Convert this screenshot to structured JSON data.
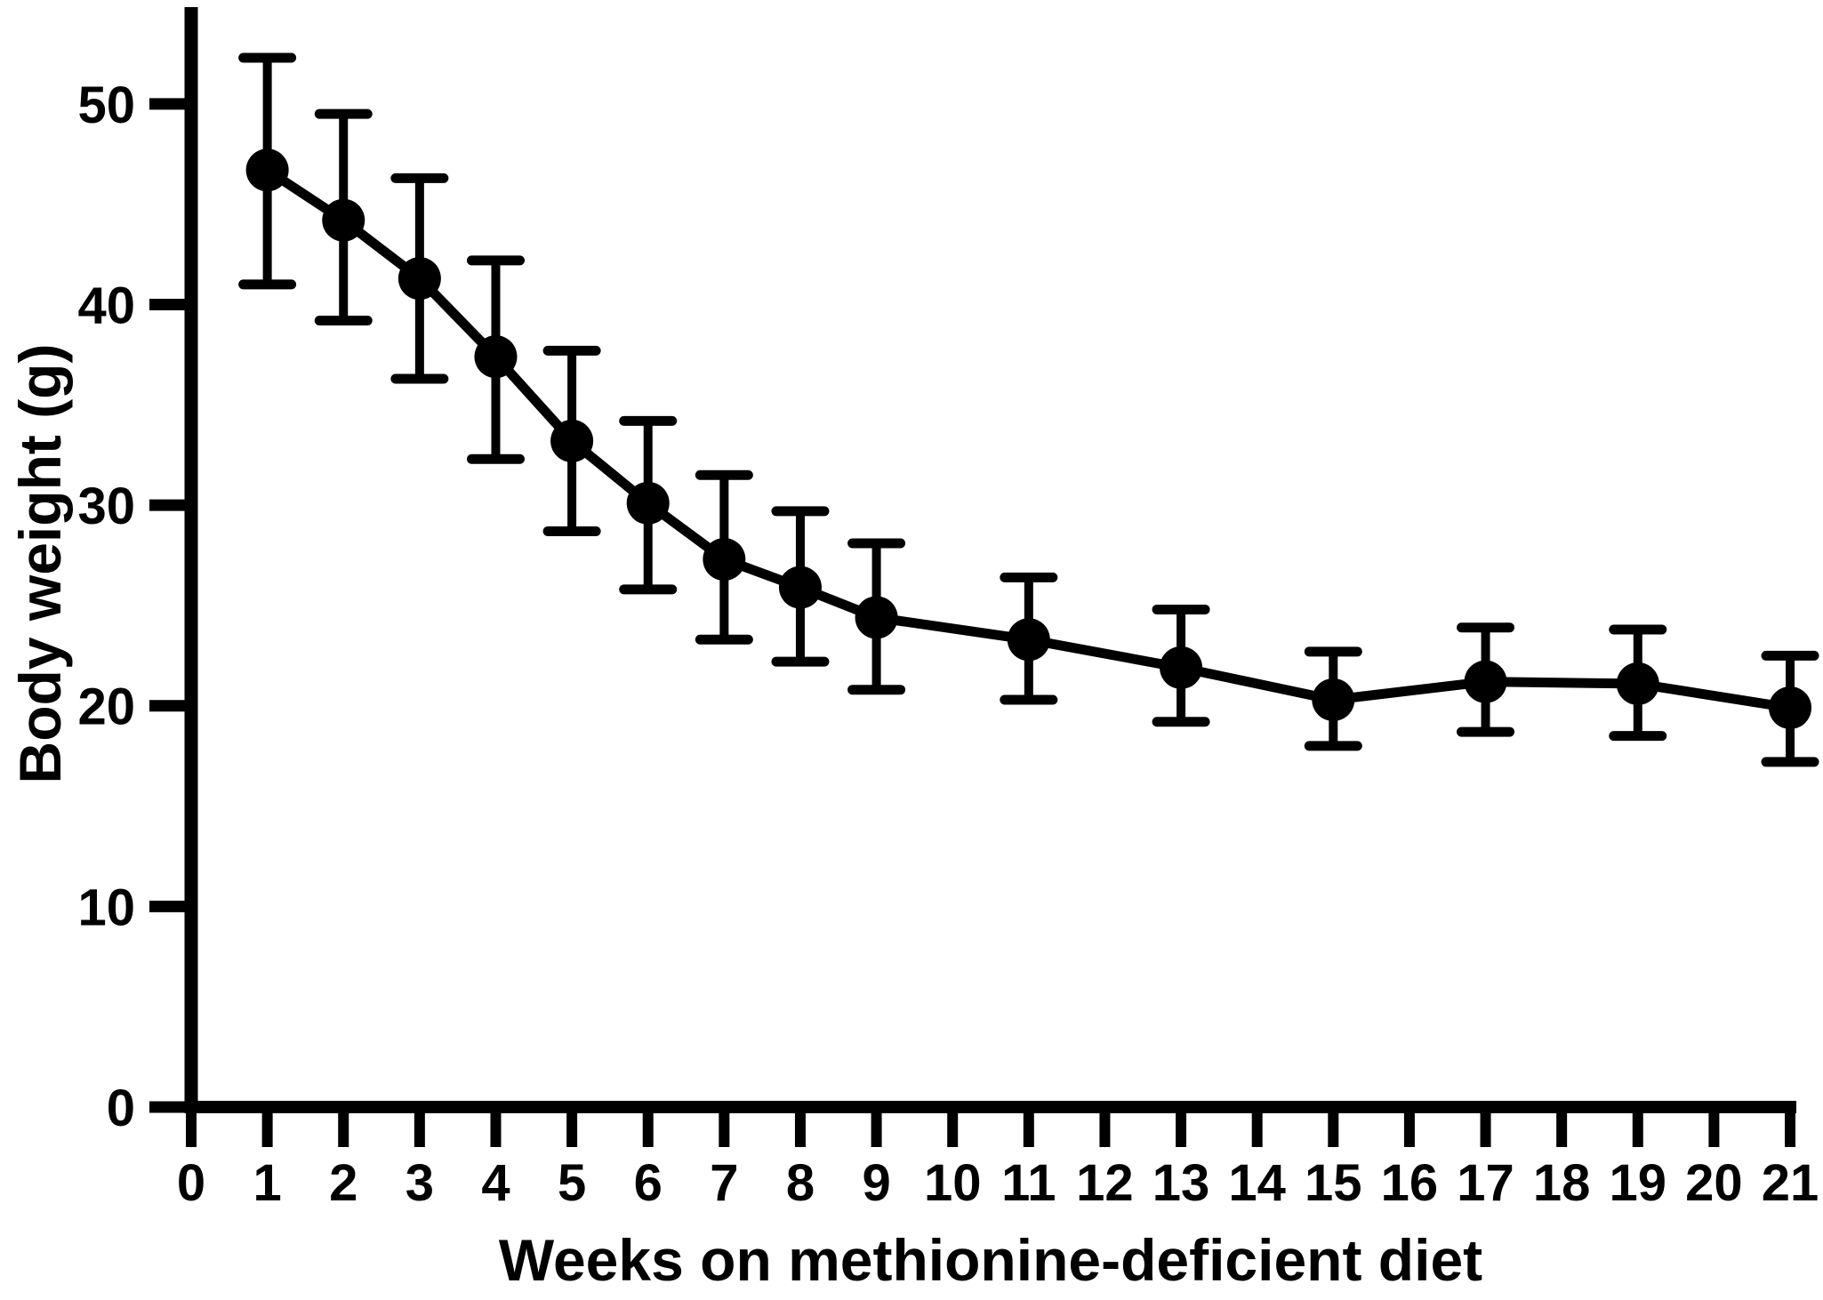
{
  "figure_title": "",
  "chart_data": {
    "type": "line",
    "title": "",
    "xlabel": "Weeks on methionine-deficient diet",
    "ylabel": "Body weight (g)",
    "xlim": [
      0,
      21.6
    ],
    "ylim": [
      0,
      54.8
    ],
    "grid": false,
    "legend": "none",
    "axis_color": "#000000",
    "x_ticks": [
      0,
      1,
      2,
      3,
      4,
      5,
      6,
      7,
      8,
      9,
      10,
      11,
      12,
      13,
      14,
      15,
      16,
      17,
      18,
      19,
      20,
      21
    ],
    "y_ticks": [
      0,
      10,
      20,
      30,
      40,
      50
    ],
    "series": [
      {
        "name": "Body weight",
        "marker": "filled-circle",
        "color": "#000000",
        "x": [
          1,
          2,
          3,
          4,
          5,
          6,
          7,
          8,
          9,
          11,
          13,
          15,
          17,
          19,
          21
        ],
        "y": [
          46.7,
          44.2,
          41.3,
          37.4,
          33.2,
          30.1,
          27.3,
          25.9,
          24.4,
          23.3,
          21.9,
          20.3,
          21.2,
          21.1,
          19.9
        ],
        "err_upper": [
          52.3,
          49.5,
          46.3,
          42.2,
          37.7,
          34.2,
          31.5,
          29.7,
          28.1,
          26.4,
          24.8,
          22.7,
          23.9,
          23.8,
          22.5
        ],
        "err_lower": [
          41.0,
          39.2,
          36.3,
          32.3,
          28.7,
          25.8,
          23.3,
          22.2,
          20.8,
          20.3,
          19.2,
          18.0,
          18.7,
          18.5,
          17.2
        ]
      }
    ]
  }
}
